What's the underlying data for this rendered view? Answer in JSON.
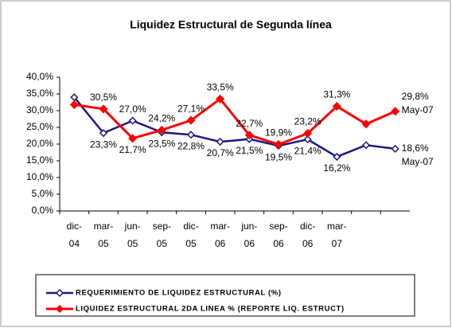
{
  "chart_data": {
    "type": "line",
    "title": "Liquidez Estructural de Segunda línea",
    "categories": [
      "dic-04",
      "mar-05",
      "jun-05",
      "sep-05",
      "dic-05",
      "mar-06",
      "jun-06",
      "sep-06",
      "dic-06",
      "mar-07",
      null,
      null
    ],
    "series": [
      {
        "name": "REQUERIMIENTO DE LIQUIDEZ ESTRUCTURAL (%)",
        "color": "#1a1a80",
        "values": [
          34.0,
          23.3,
          27.0,
          23.5,
          22.8,
          20.7,
          21.5,
          19.5,
          21.4,
          16.2,
          19.7,
          18.6
        ],
        "value_labels": [
          null,
          "23,3%",
          "27,0%",
          "23,5%",
          "22,8%",
          "20,7%",
          "21,5%",
          "19,5%",
          "21,4%",
          "16,2%",
          null,
          "18,6%"
        ]
      },
      {
        "name": "LIQUIDEZ ESTRUCTURAL 2DA LINEA % (REPORTE LIQ. ESTRUCT)",
        "color": "#ff0000",
        "values": [
          31.8,
          30.5,
          21.7,
          24.2,
          27.1,
          33.5,
          22.7,
          19.9,
          23.2,
          31.3,
          26.0,
          29.8
        ],
        "value_labels": [
          null,
          "30,5%",
          "21,7%",
          "24,2%",
          "27,1%",
          "33,5%",
          "22,7%",
          "19,9%",
          "23,2%",
          "31,3%",
          null,
          "29,8%"
        ]
      }
    ],
    "annotations": [
      "May-07",
      "May-07"
    ],
    "ylim": [
      0,
      40
    ],
    "yticks": [
      {
        "value": 0,
        "label": "0,0%"
      },
      {
        "value": 5,
        "label": "5,0%"
      },
      {
        "value": 10,
        "label": "10,0%"
      },
      {
        "value": 15,
        "label": "15,0%"
      },
      {
        "value": 20,
        "label": "20,0%"
      },
      {
        "value": 25,
        "label": "25,0%"
      },
      {
        "value": 30,
        "label": "30,0%"
      },
      {
        "value": 35,
        "label": "35,0%"
      },
      {
        "value": 40,
        "label": "40,0%"
      }
    ],
    "grid": false,
    "legend": "bottom"
  }
}
